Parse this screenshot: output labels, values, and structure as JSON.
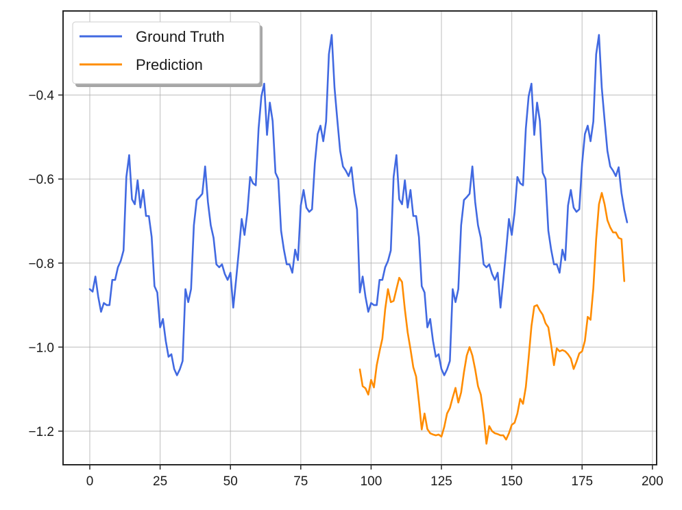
{
  "chart_data": {
    "type": "line",
    "x_ticks": [
      0,
      25,
      50,
      75,
      100,
      125,
      150,
      175,
      200
    ],
    "y_ticks": [
      -1.2,
      -1.0,
      -0.8,
      -0.6,
      -0.4
    ],
    "x_tick_labels": [
      "0",
      "25",
      "50",
      "75",
      "100",
      "125",
      "150",
      "175",
      "200"
    ],
    "y_tick_labels": [
      "−1.2",
      "−1.0",
      "−0.8",
      "−0.6",
      "−0.4"
    ],
    "xlim": [
      -9.5,
      201.5
    ],
    "ylim": [
      -1.28,
      -0.2
    ],
    "grid": true,
    "legend_position": "top-left",
    "series": [
      {
        "name": "Ground Truth",
        "color": "#4169e1",
        "x_start": 0,
        "values": [
          -0.862,
          -0.868,
          -0.832,
          -0.88,
          -0.916,
          -0.895,
          -0.9,
          -0.9,
          -0.84,
          -0.84,
          -0.81,
          -0.795,
          -0.77,
          -0.595,
          -0.543,
          -0.648,
          -0.66,
          -0.603,
          -0.668,
          -0.626,
          -0.688,
          -0.688,
          -0.738,
          -0.855,
          -0.87,
          -0.953,
          -0.933,
          -0.985,
          -1.023,
          -1.017,
          -1.052,
          -1.067,
          -1.053,
          -1.033,
          -0.862,
          -0.893,
          -0.862,
          -0.71,
          -0.65,
          -0.643,
          -0.635,
          -0.57,
          -0.655,
          -0.71,
          -0.74,
          -0.803,
          -0.81,
          -0.803,
          -0.826,
          -0.84,
          -0.823,
          -0.906,
          -0.84,
          -0.77,
          -0.695,
          -0.733,
          -0.68,
          -0.595,
          -0.61,
          -0.615,
          -0.48,
          -0.403,
          -0.373,
          -0.495,
          -0.418,
          -0.462,
          -0.585,
          -0.6,
          -0.723,
          -0.768,
          -0.803,
          -0.803,
          -0.823,
          -0.768,
          -0.793,
          -0.663,
          -0.626,
          -0.668,
          -0.678,
          -0.672,
          -0.563,
          -0.493,
          -0.473,
          -0.51,
          -0.463,
          -0.303,
          -0.257,
          -0.383,
          -0.46,
          -0.533,
          -0.57,
          -0.58,
          -0.593,
          -0.572,
          -0.633,
          -0.673,
          -0.87,
          -0.832,
          -0.88,
          -0.916,
          -0.895,
          -0.9,
          -0.9,
          -0.84,
          -0.84,
          -0.81,
          -0.795,
          -0.77,
          -0.595,
          -0.543,
          -0.648,
          -0.66,
          -0.603,
          -0.668,
          -0.626,
          -0.688,
          -0.688,
          -0.738,
          -0.855,
          -0.87,
          -0.953,
          -0.933,
          -0.985,
          -1.023,
          -1.017,
          -1.052,
          -1.067,
          -1.053,
          -1.033,
          -0.862,
          -0.893,
          -0.862,
          -0.71,
          -0.65,
          -0.643,
          -0.635,
          -0.57,
          -0.655,
          -0.71,
          -0.74,
          -0.803,
          -0.81,
          -0.803,
          -0.826,
          -0.84,
          -0.823,
          -0.906,
          -0.84,
          -0.77,
          -0.695,
          -0.733,
          -0.68,
          -0.595,
          -0.61,
          -0.615,
          -0.48,
          -0.403,
          -0.373,
          -0.495,
          -0.418,
          -0.462,
          -0.585,
          -0.6,
          -0.723,
          -0.768,
          -0.803,
          -0.803,
          -0.823,
          -0.768,
          -0.793,
          -0.663,
          -0.626,
          -0.668,
          -0.678,
          -0.672,
          -0.563,
          -0.493,
          -0.473,
          -0.51,
          -0.463,
          -0.303,
          -0.257,
          -0.383,
          -0.46,
          -0.533,
          -0.57,
          -0.58,
          -0.593,
          -0.572,
          -0.633,
          -0.673,
          -0.703
        ]
      },
      {
        "name": "Prediction",
        "color": "#ff8c00",
        "x_start": 96,
        "values": [
          -1.053,
          -1.093,
          -1.098,
          -1.113,
          -1.078,
          -1.096,
          -1.043,
          -1.01,
          -0.98,
          -0.91,
          -0.862,
          -0.893,
          -0.89,
          -0.862,
          -0.835,
          -0.845,
          -0.91,
          -0.965,
          -1.005,
          -1.048,
          -1.07,
          -1.13,
          -1.196,
          -1.158,
          -1.195,
          -1.205,
          -1.208,
          -1.21,
          -1.208,
          -1.213,
          -1.19,
          -1.158,
          -1.145,
          -1.12,
          -1.097,
          -1.132,
          -1.108,
          -1.06,
          -1.02,
          -1.0,
          -1.02,
          -1.053,
          -1.093,
          -1.113,
          -1.162,
          -1.23,
          -1.188,
          -1.2,
          -1.205,
          -1.207,
          -1.21,
          -1.21,
          -1.22,
          -1.205,
          -1.185,
          -1.18,
          -1.158,
          -1.123,
          -1.135,
          -1.095,
          -1.025,
          -0.95,
          -0.903,
          -0.9,
          -0.913,
          -0.923,
          -0.943,
          -0.953,
          -0.995,
          -1.043,
          -1.003,
          -1.01,
          -1.007,
          -1.01,
          -1.017,
          -1.027,
          -1.052,
          -1.035,
          -1.015,
          -1.01,
          -0.985,
          -0.928,
          -0.935,
          -0.86,
          -0.743,
          -0.66,
          -0.633,
          -0.66,
          -0.698,
          -0.715,
          -0.727,
          -0.727,
          -0.74,
          -0.743,
          -0.843
        ]
      }
    ]
  }
}
